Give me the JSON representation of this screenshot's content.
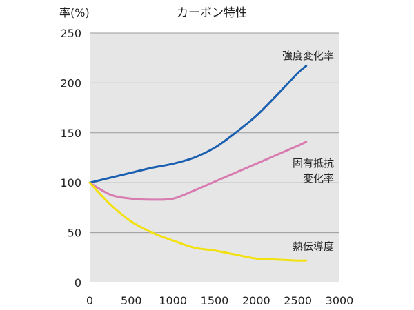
{
  "chart_data": {
    "type": "line",
    "title": "カーボン特性",
    "ylabel": "率(%)",
    "xlabel": "",
    "xlim": [
      0,
      3000
    ],
    "ylim": [
      0,
      250
    ],
    "xticks": [
      0,
      500,
      1000,
      1500,
      2000,
      2500,
      3000
    ],
    "yticks": [
      0,
      50,
      100,
      150,
      200,
      250
    ],
    "grid": true,
    "plot_background": "#e6e6e6",
    "series": [
      {
        "name": "強度変化率",
        "label_lines": [
          "強度変化率"
        ],
        "color": "#1a5fb0",
        "x": [
          0,
          250,
          500,
          750,
          1000,
          1250,
          1500,
          1750,
          2000,
          2250,
          2500,
          2600
        ],
        "y": [
          100,
          105,
          110,
          115,
          119,
          125,
          135,
          150,
          167,
          188,
          210,
          217
        ]
      },
      {
        "name": "固有抵抗変化率",
        "label_lines": [
          "固有抵抗",
          "変化率"
        ],
        "color": "#d87bb0",
        "x": [
          0,
          250,
          500,
          750,
          1000,
          1250,
          1500,
          1750,
          2000,
          2250,
          2500,
          2600
        ],
        "y": [
          100,
          88,
          84,
          83,
          84,
          92,
          101,
          110,
          119,
          128,
          137,
          141
        ]
      },
      {
        "name": "熱伝導度",
        "label_lines": [
          "熱伝導度"
        ],
        "color": "#f2e011",
        "x": [
          0,
          250,
          500,
          750,
          1000,
          1250,
          1500,
          1750,
          2000,
          2250,
          2500,
          2600
        ],
        "y": [
          100,
          78,
          61,
          50,
          42,
          35,
          32,
          28,
          24,
          23,
          22,
          22
        ]
      }
    ]
  }
}
